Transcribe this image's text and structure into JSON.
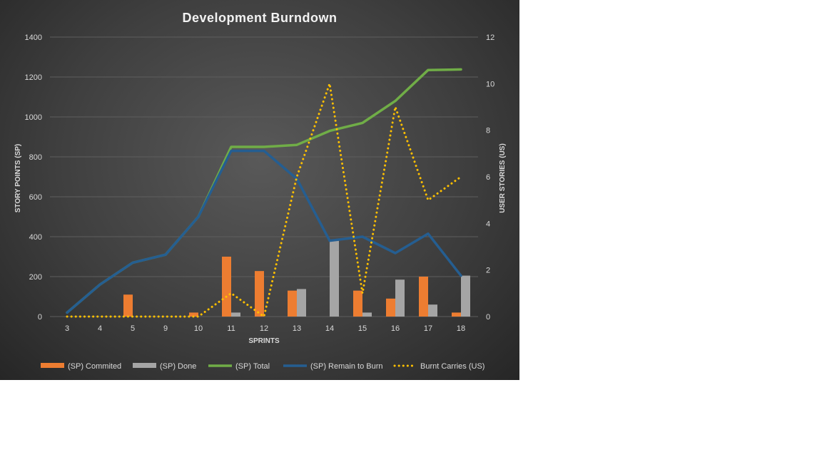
{
  "chart_data": {
    "type": "bar",
    "title": "Development  Burndown",
    "xlabel": "SPRINTS",
    "ylabel": "STORY POINTS (SP)",
    "y2label": "USER STORIES (US)",
    "categories": [
      "3",
      "4",
      "5",
      "9",
      "10",
      "11",
      "12",
      "13",
      "14",
      "15",
      "16",
      "17",
      "18"
    ],
    "ylim": [
      0,
      1400
    ],
    "yticks": [
      0,
      200,
      400,
      600,
      800,
      1000,
      1200,
      1400
    ],
    "y2lim": [
      0,
      12
    ],
    "y2ticks": [
      0,
      2,
      4,
      6,
      8,
      10,
      12
    ],
    "grid": true,
    "legend_position": "bottom",
    "series": [
      {
        "name": "(SP) Commited",
        "type": "bar",
        "axis": "left",
        "color": "#ed7d31",
        "values": [
          0,
          0,
          110,
          0,
          20,
          300,
          228,
          130,
          0,
          130,
          90,
          200,
          20
        ]
      },
      {
        "name": "(SP) Done",
        "type": "bar",
        "axis": "left",
        "color": "#a5a5a5",
        "values": [
          0,
          0,
          0,
          0,
          0,
          20,
          0,
          138,
          380,
          20,
          185,
          60,
          205
        ]
      },
      {
        "name": "(SP) Total",
        "type": "line",
        "axis": "left",
        "color": "#70ad47",
        "values": [
          20,
          160,
          270,
          310,
          500,
          850,
          850,
          860,
          930,
          970,
          1080,
          1235,
          1238
        ]
      },
      {
        "name": "(SP) Remain to Burn",
        "type": "line",
        "axis": "left",
        "color": "#255e91",
        "values": [
          20,
          160,
          270,
          310,
          500,
          830,
          830,
          690,
          380,
          400,
          318,
          415,
          205
        ]
      },
      {
        "name": "Burnt Carries (US)",
        "type": "dotted-line",
        "axis": "right",
        "color": "#ffc000",
        "values": [
          0,
          0,
          0,
          0,
          0,
          1,
          0,
          6,
          10,
          1,
          9,
          5,
          6
        ]
      }
    ]
  }
}
